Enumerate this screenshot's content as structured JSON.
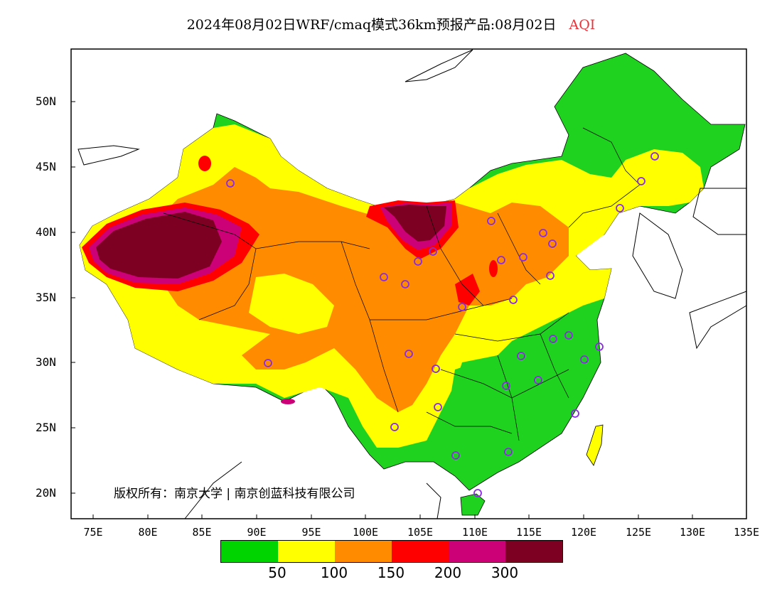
{
  "title": {
    "main": "2024年08月02日WRF/cmaq模式36km预报产品:08月02日",
    "variable": "AQI"
  },
  "axes": {
    "lat_labels": [
      "50N",
      "45N",
      "40N",
      "35N",
      "30N",
      "25N",
      "20N"
    ],
    "lon_labels": [
      "75E",
      "80E",
      "85E",
      "90E",
      "95E",
      "100E",
      "105E",
      "110E",
      "115E",
      "120E",
      "125E",
      "130E",
      "135E"
    ]
  },
  "copyright": "版权所有：南京大学 | 南京创蓝科技有限公司",
  "legend": {
    "colors": [
      "#00d400",
      "#ffff00",
      "#ff8c00",
      "#ff0000",
      "#cc0077",
      "#7d0023"
    ],
    "labels": [
      "50",
      "100",
      "150",
      "200",
      "300"
    ]
  },
  "colors": {
    "green": "#1fd21f",
    "yellow": "#ffff00",
    "orange": "#ff8c00",
    "red": "#ff0000",
    "magenta": "#cc0077",
    "maroon": "#7d0023",
    "station": "#8a2be2"
  }
}
